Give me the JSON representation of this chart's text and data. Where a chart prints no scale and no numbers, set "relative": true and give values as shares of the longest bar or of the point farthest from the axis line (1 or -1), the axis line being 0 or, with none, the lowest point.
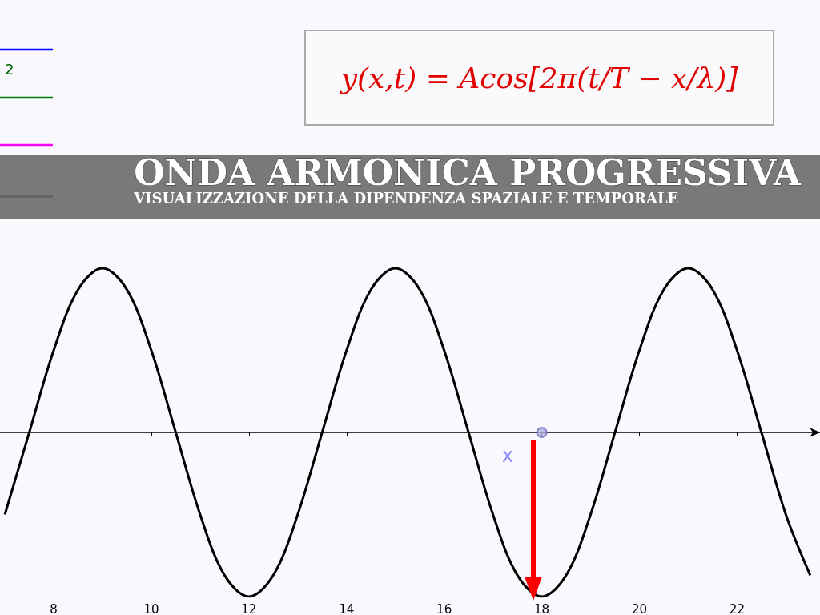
{
  "chart_data": {
    "type": "line",
    "title": "ONDA ARMONICA PROGRESSIVA",
    "subtitle": "VISUALIZZAZIONE DELLA DIPENDENZA SPAZIALE E TEMPORALE",
    "relative": true,
    "xlim": [
      6.9,
      23.7
    ],
    "xticks": [
      8,
      10,
      12,
      14,
      16,
      18,
      20,
      22
    ],
    "grid": false,
    "marker": "none",
    "annotations": [
      "2",
      "y(x,t) = Acos[2π(t/T − x/λ)]",
      "X"
    ],
    "series": [
      {
        "color": "#000000",
        "x": [
          7,
          7.5,
          8,
          8.5,
          9,
          9.5,
          10,
          10.5,
          11,
          11.5,
          12,
          12.5,
          13,
          13.5,
          14,
          14.5,
          15,
          15.5,
          16,
          16.5,
          17,
          17.5,
          18,
          18.5,
          19,
          19.5,
          20,
          20.5,
          21,
          21.5,
          22,
          22.5,
          23,
          23.5
        ],
        "values": [
          -0.5,
          0,
          0.5,
          0.87,
          1,
          0.87,
          0.5,
          0,
          -0.5,
          -0.87,
          -1,
          -0.87,
          -0.5,
          0,
          0.5,
          0.87,
          1,
          0.87,
          0.5,
          0,
          -0.5,
          -0.87,
          -1,
          -0.87,
          -0.5,
          0,
          0.5,
          0.87,
          1,
          0.87,
          0.5,
          0,
          -0.5,
          -0.87
        ]
      },
      {
        "type": "scatter",
        "color": "#7070c0",
        "x": [
          18
        ],
        "values": [
          0
        ],
        "marker": "circle"
      }
    ]
  }
}
